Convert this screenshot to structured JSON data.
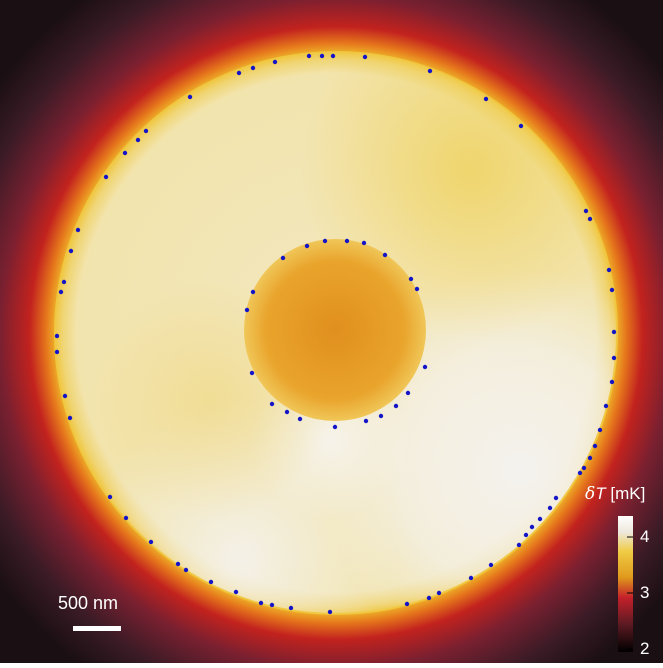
{
  "colorbar": {
    "symbol": "δ",
    "variable": "T",
    "unit": "[mK]",
    "ticks": [
      "4",
      "3",
      "2"
    ],
    "range": [
      2,
      4.3
    ],
    "colors": [
      "#ffffff",
      "#ede8dc",
      "#f0cc45",
      "#e09a1c",
      "#c4202a",
      "#5a1a22",
      "#000000"
    ]
  },
  "scale_bar": {
    "label": "500 nm"
  },
  "field": {
    "outer_disk_color": "#f3e7b8",
    "inner_disk_color": "#e59a24",
    "cool_region_color": "#f2f0ec",
    "rim_colors": [
      "#f0c42e",
      "#e6781c",
      "#c2221e",
      "#7a2030",
      "#3a1b26"
    ]
  },
  "marker_color": "#1515c8"
}
